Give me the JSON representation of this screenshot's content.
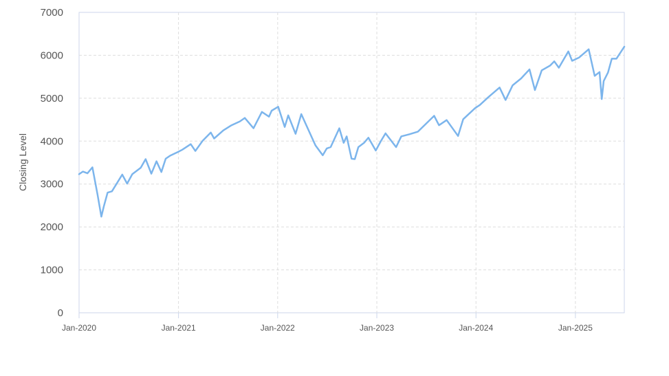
{
  "chart_data": {
    "type": "line",
    "title": "",
    "xlabel": "",
    "ylabel": "Closing Level",
    "x_ticks": [
      "Jan-2020",
      "Jan-2021",
      "Jan-2022",
      "Jan-2023",
      "Jan-2024",
      "Jan-2025"
    ],
    "y_ticks": [
      "0",
      "1000",
      "2000",
      "3000",
      "4000",
      "5000",
      "6000",
      "7000"
    ],
    "ylim": [
      0,
      7000
    ],
    "xlim": [
      "2020-01-01",
      "2025-06-30"
    ],
    "grid": true,
    "line_color": "#7cb5ec",
    "series": [
      {
        "x": [
          "2020-01-01",
          "2020-01-15",
          "2020-02-01",
          "2020-02-19",
          "2020-03-09",
          "2020-03-23",
          "2020-04-01",
          "2020-04-15",
          "2020-05-01",
          "2020-06-08",
          "2020-06-26",
          "2020-07-15",
          "2020-08-15",
          "2020-09-02",
          "2020-09-23",
          "2020-10-12",
          "2020-10-30",
          "2020-11-15",
          "2020-12-01",
          "2020-12-31",
          "2021-01-15",
          "2021-02-15",
          "2021-03-04",
          "2021-03-31",
          "2021-04-30",
          "2021-05-12",
          "2021-06-15",
          "2021-07-15",
          "2021-08-15",
          "2021-09-02",
          "2021-10-04",
          "2021-11-04",
          "2021-11-30",
          "2021-12-10",
          "2022-01-03",
          "2022-01-27",
          "2022-02-09",
          "2022-03-08",
          "2022-03-29",
          "2022-04-15",
          "2022-05-20",
          "2022-06-16",
          "2022-07-01",
          "2022-07-15",
          "2022-08-16",
          "2022-09-01",
          "2022-09-12",
          "2022-09-30",
          "2022-10-12",
          "2022-10-25",
          "2022-11-15",
          "2022-12-01",
          "2022-12-28",
          "2023-01-15",
          "2023-02-02",
          "2023-03-13",
          "2023-04-01",
          "2023-05-01",
          "2023-06-01",
          "2023-07-31",
          "2023-08-18",
          "2023-09-15",
          "2023-10-27",
          "2023-11-15",
          "2023-12-29",
          "2024-01-15",
          "2024-02-15",
          "2024-03-28",
          "2024-04-19",
          "2024-05-15",
          "2024-06-15",
          "2024-07-16",
          "2024-08-05",
          "2024-08-30",
          "2024-09-30",
          "2024-10-15",
          "2024-11-01",
          "2024-12-06",
          "2024-12-20",
          "2025-01-15",
          "2025-02-19",
          "2025-03-13",
          "2025-03-31",
          "2025-04-08",
          "2025-04-15",
          "2025-05-01",
          "2025-05-15",
          "2025-06-01",
          "2025-06-30"
        ],
        "y": [
          3230,
          3290,
          3250,
          3390,
          2750,
          2240,
          2480,
          2800,
          2830,
          3220,
          3010,
          3230,
          3380,
          3580,
          3240,
          3530,
          3280,
          3590,
          3660,
          3750,
          3800,
          3930,
          3770,
          4010,
          4200,
          4060,
          4250,
          4370,
          4460,
          4540,
          4300,
          4680,
          4570,
          4710,
          4800,
          4330,
          4600,
          4170,
          4630,
          4390,
          3900,
          3670,
          3830,
          3860,
          4300,
          3960,
          4110,
          3590,
          3580,
          3860,
          3960,
          4080,
          3780,
          3990,
          4180,
          3860,
          4110,
          4160,
          4220,
          4590,
          4370,
          4490,
          4120,
          4510,
          4770,
          4840,
          5020,
          5250,
          4960,
          5300,
          5460,
          5670,
          5190,
          5650,
          5760,
          5860,
          5710,
          6090,
          5870,
          5950,
          6140,
          5520,
          5610,
          4980,
          5400,
          5600,
          5920,
          5920,
          6200
        ]
      }
    ]
  }
}
